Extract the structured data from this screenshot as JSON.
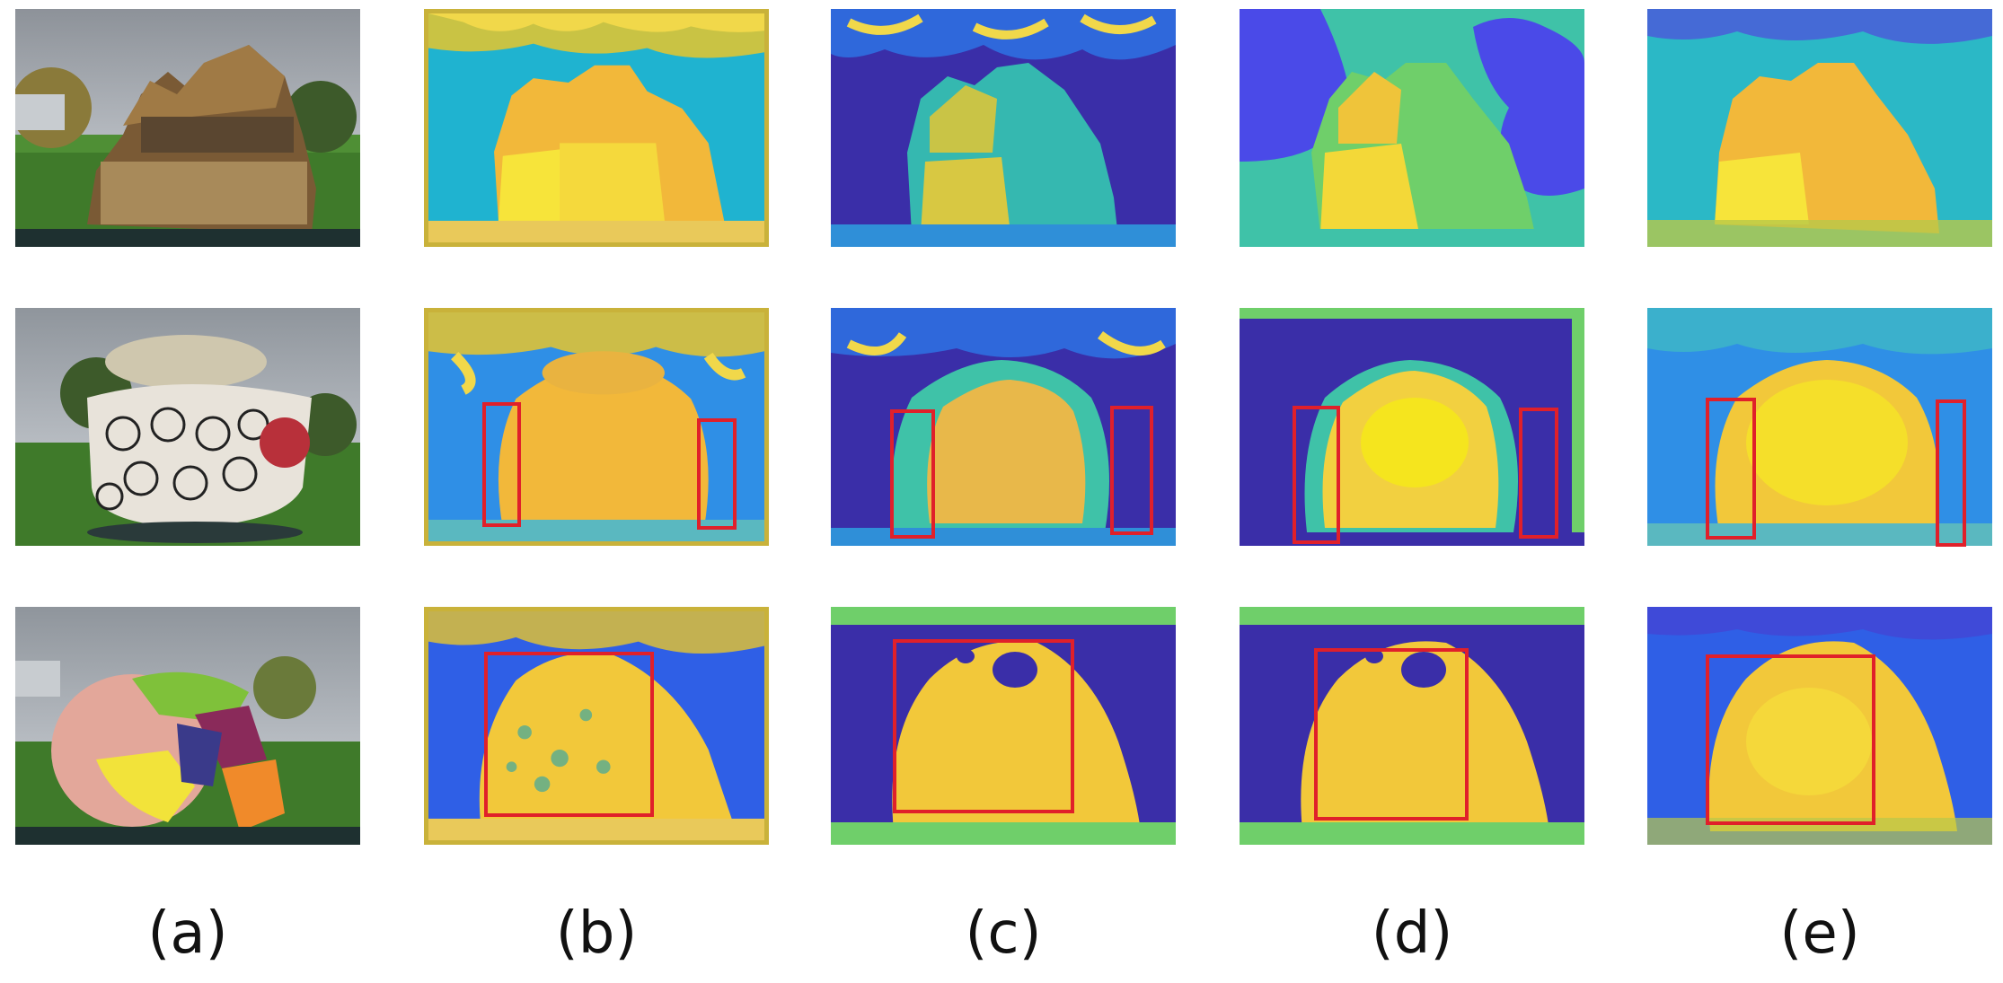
{
  "figure": {
    "columns": [
      {
        "caption": "(a)",
        "kind": "photo"
      },
      {
        "caption": "(b)",
        "kind": "depth-map"
      },
      {
        "caption": "(c)",
        "kind": "depth-map"
      },
      {
        "caption": "(d)",
        "kind": "depth-map"
      },
      {
        "caption": "(e)",
        "kind": "depth-map"
      }
    ],
    "rows": [
      {
        "scene": "stone cottage model"
      },
      {
        "scene": "floral ceramic pot"
      },
      {
        "scene": "colored skull model"
      }
    ],
    "colors": {
      "highlight_box": "#e0202a",
      "depth_near": "#f5e51e",
      "depth_mid": "#3fc2c0",
      "depth_far": "#3a2ea8"
    }
  }
}
